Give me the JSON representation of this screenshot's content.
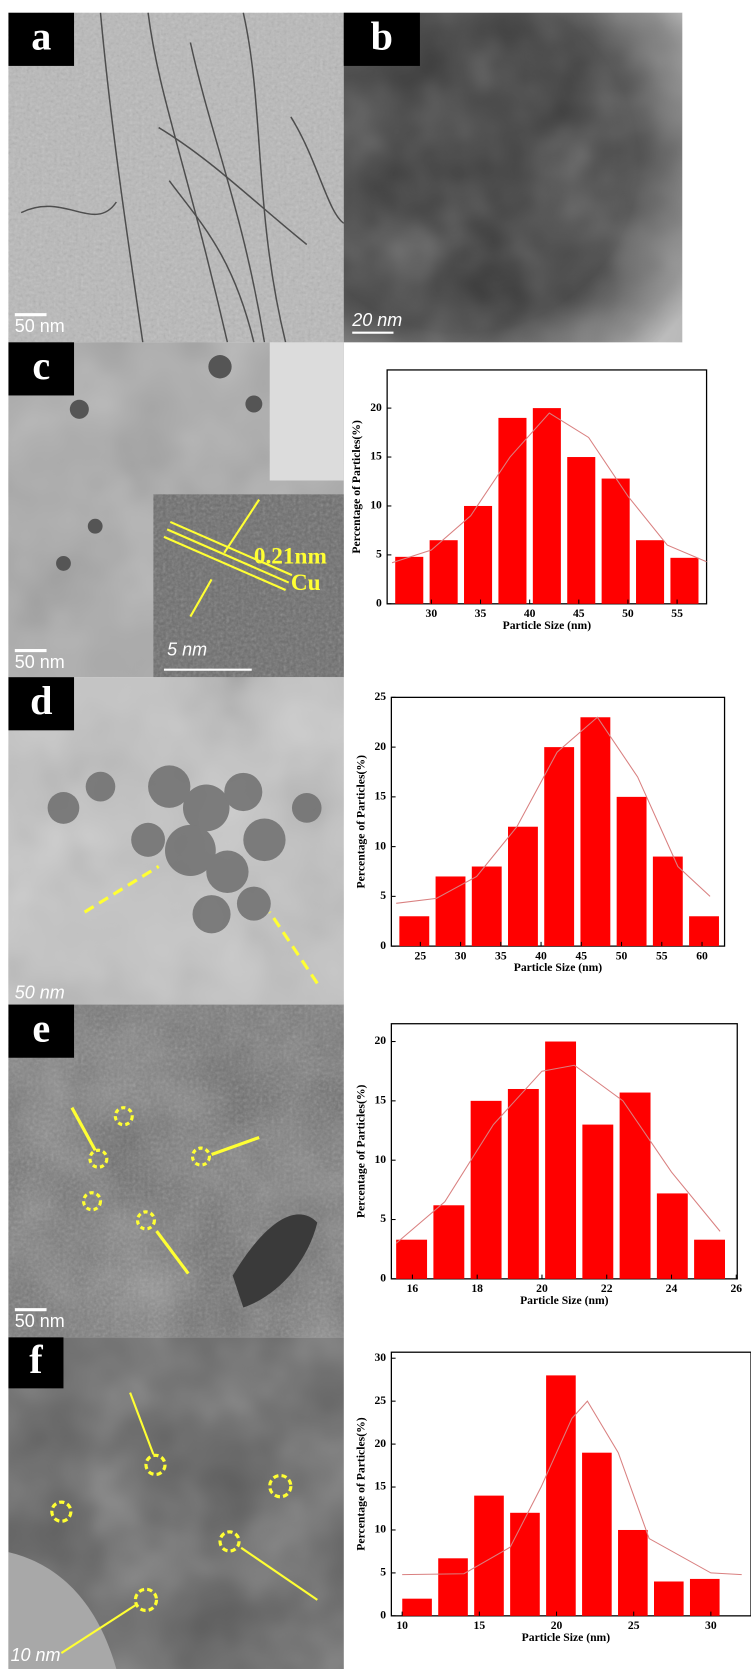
{
  "panels": [
    {
      "label": "a",
      "scale_bar": "50 nm"
    },
    {
      "label": "b",
      "scale_bar": "20 nm"
    },
    {
      "label": "c",
      "scale_bar": "50 nm",
      "inset_scale_bar": "5 nm",
      "lattice": "0.21nm",
      "element": "Cu"
    },
    {
      "label": "d",
      "scale_bar": "50 nm"
    },
    {
      "label": "e",
      "scale_bar": "50 nm"
    },
    {
      "label": "f",
      "scale_bar": "10 nm"
    }
  ],
  "chart_data": [
    {
      "type": "histogram",
      "x_label": "Particle Size (nm)",
      "y_label": "Percentage of Particles(%)",
      "color": "#ff0000",
      "fit_color": "#d98080",
      "bins": [
        26,
        29.5,
        33,
        36.5,
        40,
        43.5,
        47,
        50.5,
        54,
        57.5
      ],
      "values": [
        4.8,
        6.5,
        10,
        19,
        20,
        15,
        12.8,
        6.5,
        4.7
      ],
      "fit": {
        "x": [
          26,
          30,
          34,
          38,
          42,
          46,
          50,
          54,
          58
        ],
        "y": [
          4.2,
          5.5,
          9,
          15,
          19.5,
          17,
          11,
          6,
          4.3
        ]
      },
      "xlim": [
        25.5,
        58
      ],
      "xticks": [
        30,
        35,
        40,
        45,
        50,
        55
      ],
      "ylim": [
        0,
        23.9
      ],
      "yticks": [
        0,
        5,
        10,
        15,
        20
      ]
    },
    {
      "type": "histogram",
      "x_label": "Particle Size (nm)",
      "y_label": "Percentage of Particles(%)",
      "color": "#ff0000",
      "fit_color": "#d98080",
      "bins": [
        22,
        26.5,
        31,
        35.5,
        40,
        44.5,
        49,
        53.5,
        58,
        62.5
      ],
      "values": [
        3,
        7,
        8,
        12,
        20,
        23,
        15,
        9,
        3
      ],
      "fit": {
        "x": [
          22,
          27,
          32,
          37,
          42,
          47,
          52,
          57,
          61
        ],
        "y": [
          4.3,
          4.8,
          7,
          12,
          19.5,
          23,
          17,
          8,
          5
        ]
      },
      "xlim": [
        21.4,
        62.8
      ],
      "xticks": [
        25,
        30,
        35,
        40,
        45,
        50,
        55,
        60
      ],
      "ylim": [
        0,
        25
      ],
      "yticks": [
        0,
        5,
        10,
        15,
        20,
        25
      ]
    },
    {
      "type": "histogram",
      "x_label": "Particle Size (nm)",
      "y_label": "Percentage of Particles(%)",
      "color": "#ff0000",
      "fit_color": "#d98080",
      "bins": [
        15.4,
        16.55,
        17.7,
        18.85,
        20,
        21.15,
        22.3,
        23.45,
        24.6,
        25.75
      ],
      "values": [
        3.3,
        6.2,
        15,
        16,
        20,
        13,
        15.7,
        7.2,
        3.3
      ],
      "fit": {
        "x": [
          15.5,
          17,
          18.5,
          20,
          21,
          22.5,
          24,
          25.5
        ],
        "y": [
          3,
          6.5,
          13,
          17.5,
          18,
          15,
          9,
          4
        ]
      },
      "xlim": [
        15.35,
        26.03
      ],
      "xticks": [
        16,
        18,
        20,
        22,
        24,
        26
      ],
      "ylim": [
        0,
        21.5
      ],
      "yticks": [
        0,
        5,
        10,
        15,
        20
      ]
    },
    {
      "type": "histogram",
      "x_label": "Particle Size (nm)",
      "y_label": "Percentage of Particles(%)",
      "color": "#ff0000",
      "fit_color": "#d98080",
      "bins": [
        9.8,
        12.13,
        14.46,
        16.79,
        19.12,
        21.45,
        23.78,
        26.11,
        28.44,
        30.77
      ],
      "values": [
        2,
        6.7,
        14,
        12,
        28,
        19,
        10,
        4,
        4.3
      ],
      "fit": {
        "x": [
          10,
          14,
          17,
          19,
          21,
          22,
          24,
          26,
          30,
          32
        ],
        "y": [
          4.8,
          4.9,
          8,
          15,
          23,
          25,
          19,
          9,
          5,
          4.8
        ]
      },
      "xlim": [
        9.3,
        32.6
      ],
      "xticks": [
        10,
        15,
        20,
        25,
        30
      ],
      "ylim": [
        0,
        30.7
      ],
      "yticks": [
        0,
        5,
        10,
        15,
        20,
        25,
        30
      ]
    }
  ]
}
